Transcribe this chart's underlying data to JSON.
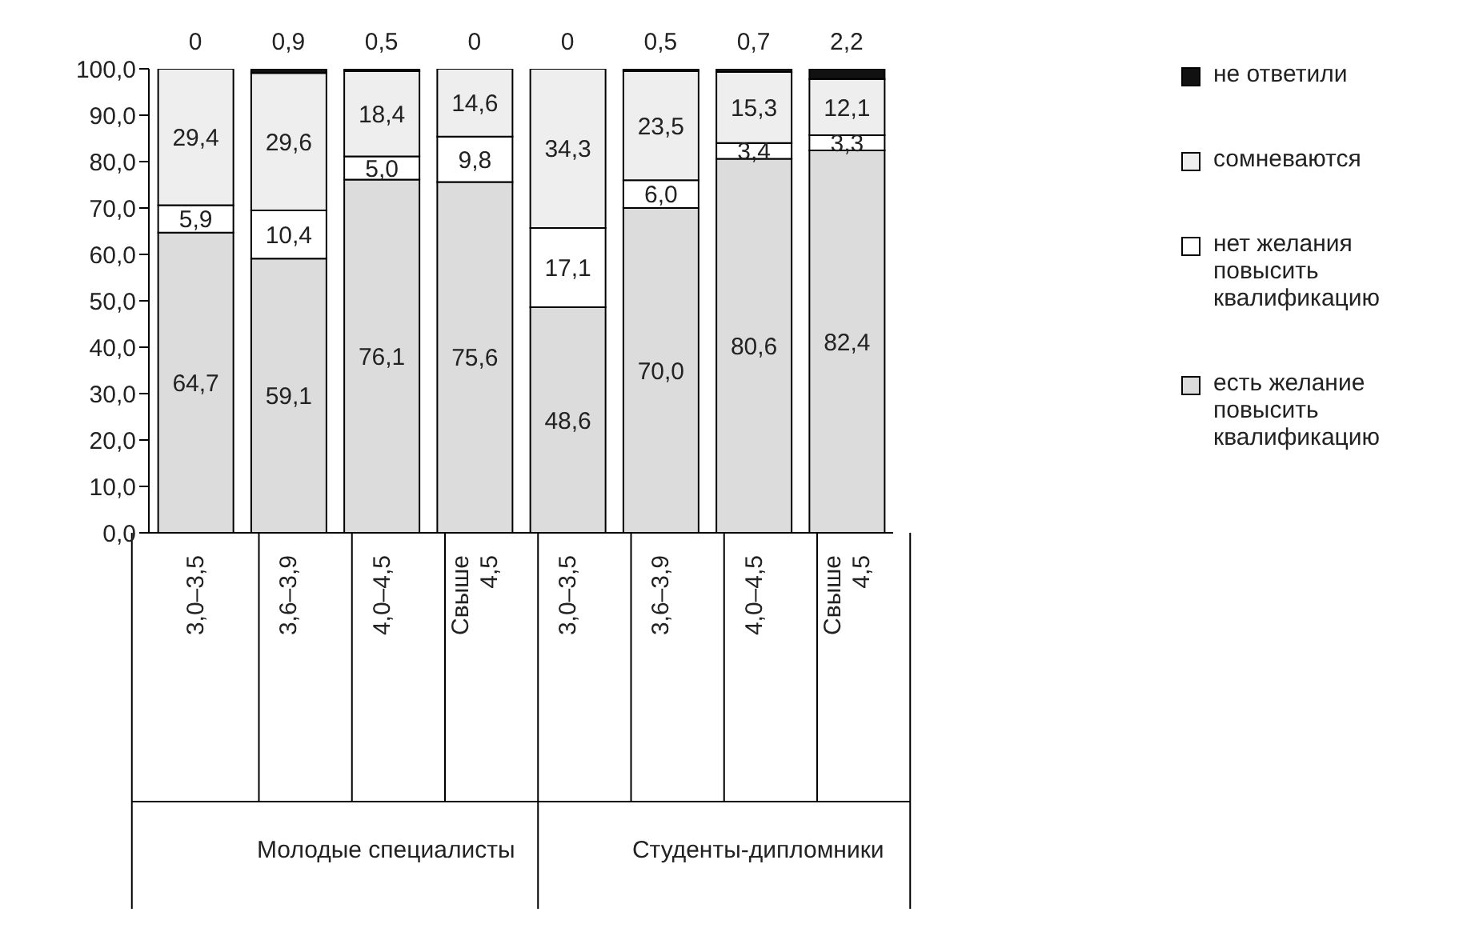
{
  "chart_data": {
    "type": "bar",
    "stacked": true,
    "categories": [
      "3,0–3,5",
      "3,6–3,9",
      "4,0–4,5",
      "Свыше 4,5",
      "3,0–3,5",
      "3,6–3,9",
      "4,0–4,5",
      "Свыше 4,5"
    ],
    "annotations": [
      "Молодые специалисты",
      "Студенты-дипломники"
    ],
    "series": [
      {
        "name": "есть желание повысить квалификацию",
        "color": "#dcdcdc",
        "values": [
          64.7,
          59.1,
          76.1,
          75.6,
          48.6,
          70.0,
          80.6,
          82.4
        ],
        "value_labels": [
          "64,7",
          "59,1",
          "76,1",
          "75,6",
          "48,6",
          "70,0",
          "80,6",
          "82,4"
        ]
      },
      {
        "name": "нет желания повысить квалификацию",
        "color": "#ffffff",
        "values": [
          5.9,
          10.4,
          5.0,
          9.8,
          17.1,
          6.0,
          3.4,
          3.3
        ],
        "value_labels": [
          "5,9",
          "10,4",
          "5,0",
          "9,8",
          "17,1",
          "6,0",
          "3,4",
          "3,3"
        ]
      },
      {
        "name": "сомневаются",
        "color": "#eeeeee",
        "values": [
          29.4,
          29.6,
          18.4,
          14.6,
          34.3,
          23.5,
          15.3,
          12.1
        ],
        "value_labels": [
          "29,4",
          "29,6",
          "18,4",
          "14,6",
          "34,3",
          "23,5",
          "15,3",
          "12,1"
        ]
      },
      {
        "name": "не ответили",
        "color": "#111111",
        "values": [
          0,
          0.9,
          0.5,
          0,
          0,
          0.5,
          0.7,
          2.2
        ],
        "value_labels": [
          "0",
          "0,9",
          "0,5",
          "0",
          "0",
          "0,5",
          "0,7",
          "2,2"
        ]
      }
    ],
    "ylim": [
      0,
      100
    ],
    "yticks": [
      {
        "value": 0,
        "label": "0,0"
      },
      {
        "value": 10,
        "label": "10,0"
      },
      {
        "value": 20,
        "label": "20,0"
      },
      {
        "value": 30,
        "label": "30,0"
      },
      {
        "value": 40,
        "label": "40,0"
      },
      {
        "value": 50,
        "label": "50,0"
      },
      {
        "value": 60,
        "label": "60,0"
      },
      {
        "value": 70,
        "label": "70,0"
      },
      {
        "value": 80,
        "label": "80,0"
      },
      {
        "value": 90,
        "label": "90,0"
      },
      {
        "value": 100,
        "label": "100,0"
      }
    ],
    "grid": false,
    "legend": "right"
  }
}
